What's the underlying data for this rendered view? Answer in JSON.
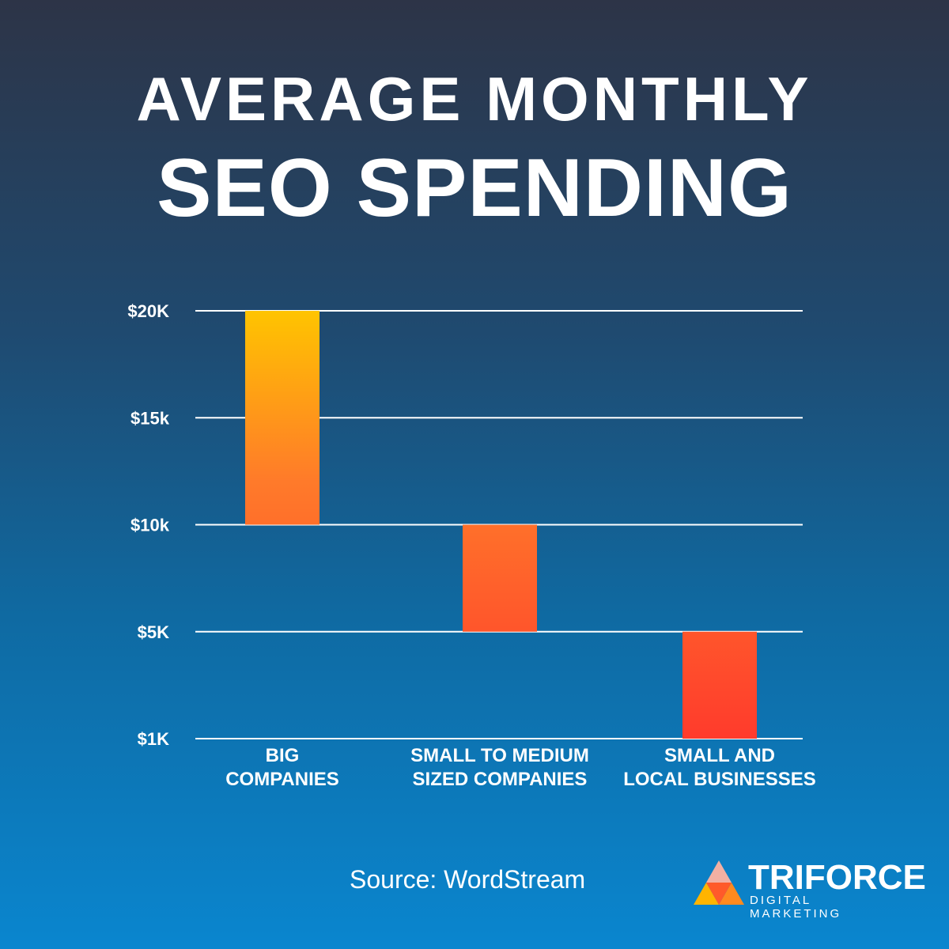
{
  "title": {
    "line1": "AVERAGE MONTHLY",
    "line2": "SEO SPENDING"
  },
  "chart_data": {
    "type": "bar",
    "subtype": "floating-range",
    "title": "AVERAGE MONTHLY SEO SPENDING",
    "y_ticks": [
      {
        "value": 1000,
        "label": "$1K"
      },
      {
        "value": 5000,
        "label": "$5K"
      },
      {
        "value": 10000,
        "label": "$10k"
      },
      {
        "value": 15000,
        "label": "$15k"
      },
      {
        "value": 20000,
        "label": "$20K"
      }
    ],
    "categories": [
      {
        "label_lines": [
          "BIG",
          "COMPANIES"
        ],
        "low": 10000,
        "high": 20000
      },
      {
        "label_lines": [
          "SMALL TO MEDIUM",
          "SIZED COMPANIES"
        ],
        "low": 5000,
        "high": 10000
      },
      {
        "label_lines": [
          "SMALL AND",
          "LOCAL BUSINESSES"
        ],
        "low": 1000,
        "high": 5000
      }
    ],
    "grid": true,
    "colors": {
      "top": "#ffc400",
      "mid": "#ff7a2a",
      "bottom": "#ff3b2c",
      "grid": "#ffffff"
    }
  },
  "source": "Source: WordStream",
  "logo": {
    "name": "TRIFORCE",
    "sub": "DIGITAL MARKETING"
  }
}
